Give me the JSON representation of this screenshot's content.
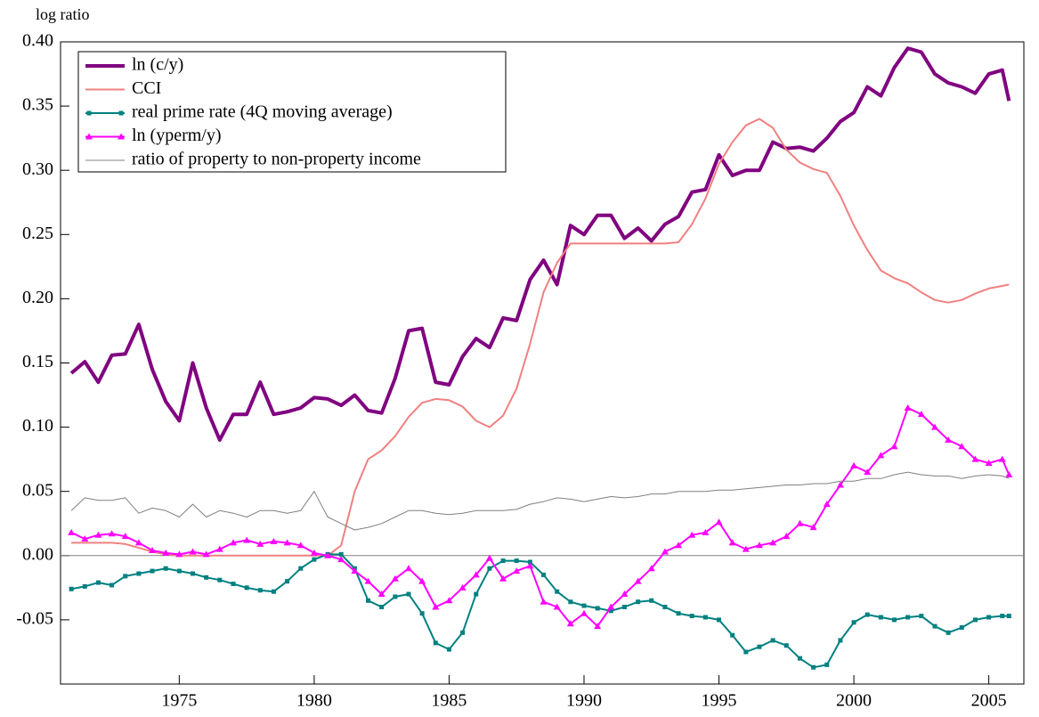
{
  "chart_data": {
    "type": "line",
    "y_label": "log ratio",
    "x": [
      1971,
      1971.5,
      1972,
      1972.5,
      1973,
      1973.5,
      1974,
      1974.5,
      1975,
      1975.5,
      1976,
      1976.5,
      1977,
      1977.5,
      1978,
      1978.5,
      1979,
      1979.5,
      1980,
      1980.5,
      1981,
      1981.5,
      1982,
      1982.5,
      1983,
      1983.5,
      1984,
      1984.5,
      1985,
      1985.5,
      1986,
      1986.5,
      1987,
      1987.5,
      1988,
      1988.5,
      1989,
      1989.5,
      1990,
      1990.5,
      1991,
      1991.5,
      1992,
      1992.5,
      1993,
      1993.5,
      1994,
      1994.5,
      1995,
      1995.5,
      1996,
      1996.5,
      1997,
      1997.5,
      1998,
      1998.5,
      1999,
      1999.5,
      2000,
      2000.5,
      2001,
      2001.5,
      2002,
      2002.5,
      2003,
      2003.5,
      2004,
      2004.5,
      2005,
      2005.5,
      2005.75
    ],
    "series": [
      {
        "name": "ln (c/y)",
        "color": "#800080",
        "width": 4,
        "marker": "none",
        "values": [
          0.142,
          0.151,
          0.135,
          0.156,
          0.157,
          0.18,
          0.145,
          0.12,
          0.105,
          0.15,
          0.115,
          0.09,
          0.11,
          0.11,
          0.135,
          0.11,
          0.112,
          0.115,
          0.123,
          0.122,
          0.117,
          0.125,
          0.113,
          0.111,
          0.138,
          0.175,
          0.177,
          0.135,
          0.133,
          0.155,
          0.169,
          0.162,
          0.185,
          0.183,
          0.215,
          0.23,
          0.211,
          0.257,
          0.25,
          0.265,
          0.265,
          0.247,
          0.255,
          0.245,
          0.258,
          0.264,
          0.283,
          0.285,
          0.312,
          0.296,
          0.3,
          0.3,
          0.322,
          0.317,
          0.318,
          0.315,
          0.325,
          0.338,
          0.345,
          0.365,
          0.358,
          0.38,
          0.395,
          0.392,
          0.375,
          0.368,
          0.365,
          0.36,
          0.375,
          0.378,
          0.354
        ]
      },
      {
        "name": "CCI",
        "color": "#f08080",
        "width": 2,
        "marker": "none",
        "values": [
          0.01,
          0.01,
          0.01,
          0.01,
          0.009,
          0.006,
          0.003,
          0.001,
          0,
          0,
          0,
          0,
          0,
          0,
          0,
          0,
          0,
          0,
          0,
          0,
          0.008,
          0.05,
          0.075,
          0.082,
          0.093,
          0.108,
          0.119,
          0.122,
          0.121,
          0.116,
          0.105,
          0.1,
          0.109,
          0.13,
          0.165,
          0.205,
          0.228,
          0.243,
          0.243,
          0.243,
          0.243,
          0.243,
          0.243,
          0.243,
          0.243,
          0.244,
          0.258,
          0.278,
          0.305,
          0.322,
          0.335,
          0.34,
          0.333,
          0.316,
          0.306,
          0.301,
          0.298,
          0.28,
          0.257,
          0.238,
          0.222,
          0.216,
          0.212,
          0.205,
          0.199,
          0.197,
          0.199,
          0.204,
          0.208,
          0.21,
          0.211
        ]
      },
      {
        "name": "real prime rate (4Q moving average)",
        "color": "#008080",
        "width": 2,
        "marker": "square",
        "values": [
          -0.026,
          -0.024,
          -0.021,
          -0.023,
          -0.016,
          -0.014,
          -0.012,
          -0.01,
          -0.012,
          -0.014,
          -0.017,
          -0.019,
          -0.022,
          -0.025,
          -0.027,
          -0.028,
          -0.02,
          -0.01,
          -0.003,
          0.001,
          0.001,
          -0.01,
          -0.035,
          -0.04,
          -0.032,
          -0.03,
          -0.045,
          -0.068,
          -0.073,
          -0.06,
          -0.03,
          -0.01,
          -0.004,
          -0.004,
          -0.005,
          -0.015,
          -0.028,
          -0.036,
          -0.039,
          -0.041,
          -0.043,
          -0.04,
          -0.036,
          -0.035,
          -0.04,
          -0.045,
          -0.047,
          -0.048,
          -0.05,
          -0.062,
          -0.075,
          -0.071,
          -0.066,
          -0.07,
          -0.08,
          -0.087,
          -0.085,
          -0.066,
          -0.052,
          -0.046,
          -0.048,
          -0.05,
          -0.048,
          -0.047,
          -0.055,
          -0.06,
          -0.056,
          -0.05,
          -0.048,
          -0.047,
          -0.047
        ]
      },
      {
        "name": "ln (yperm/y)",
        "color": "#ff00ff",
        "width": 2,
        "marker": "triangle",
        "values": [
          0.018,
          0.013,
          0.016,
          0.017,
          0.015,
          0.01,
          0.004,
          0.002,
          0.001,
          0.003,
          0.001,
          0.005,
          0.01,
          0.012,
          0.009,
          0.011,
          0.01,
          0.008,
          0.002,
          0,
          -0.003,
          -0.012,
          -0.02,
          -0.03,
          -0.018,
          -0.01,
          -0.02,
          -0.04,
          -0.035,
          -0.025,
          -0.015,
          -0.002,
          -0.018,
          -0.012,
          -0.008,
          -0.036,
          -0.04,
          -0.053,
          -0.045,
          -0.055,
          -0.04,
          -0.03,
          -0.02,
          -0.01,
          0.003,
          0.008,
          0.016,
          0.018,
          0.026,
          0.01,
          0.005,
          0.008,
          0.01,
          0.015,
          0.025,
          0.022,
          0.04,
          0.055,
          0.07,
          0.065,
          0.078,
          0.085,
          0.115,
          0.11,
          0.1,
          0.09,
          0.085,
          0.075,
          0.072,
          0.075,
          0.063
        ]
      },
      {
        "name": "ratio of property to non-property income",
        "color": "#808080",
        "width": 1,
        "marker": "none",
        "values": [
          0.035,
          0.045,
          0.043,
          0.043,
          0.045,
          0.033,
          0.037,
          0.035,
          0.03,
          0.04,
          0.03,
          0.035,
          0.033,
          0.03,
          0.035,
          0.035,
          0.033,
          0.035,
          0.05,
          0.03,
          0.025,
          0.02,
          0.022,
          0.025,
          0.03,
          0.035,
          0.035,
          0.033,
          0.032,
          0.033,
          0.035,
          0.035,
          0.035,
          0.036,
          0.04,
          0.042,
          0.045,
          0.044,
          0.042,
          0.044,
          0.046,
          0.045,
          0.046,
          0.048,
          0.048,
          0.05,
          0.05,
          0.05,
          0.051,
          0.051,
          0.052,
          0.053,
          0.054,
          0.055,
          0.055,
          0.056,
          0.056,
          0.058,
          0.058,
          0.06,
          0.06,
          0.063,
          0.065,
          0.063,
          0.062,
          0.062,
          0.06,
          0.062,
          0.063,
          0.062,
          0.06
        ]
      }
    ],
    "xlim": [
      1970.6,
      2006.3
    ],
    "xticks": [
      1975,
      1980,
      1985,
      1990,
      1995,
      2000,
      2005
    ],
    "ylim": [
      -0.1,
      0.4
    ],
    "yticks": [
      {
        "value": -0.05,
        "label": "-0.05"
      },
      {
        "value": 0,
        "label": "0.00"
      },
      {
        "value": 0.05,
        "label": "0.05"
      },
      {
        "value": 0.1,
        "label": "0.10"
      },
      {
        "value": 0.15,
        "label": "0.15"
      },
      {
        "value": 0.2,
        "label": "0.20"
      },
      {
        "value": 0.25,
        "label": "0.25"
      },
      {
        "value": 0.3,
        "label": "0.30"
      },
      {
        "value": 0.35,
        "label": "0.35"
      },
      {
        "value": 0.4,
        "label": "0.40"
      }
    ],
    "zero_line": true,
    "grid": false,
    "legend": "top-left"
  }
}
